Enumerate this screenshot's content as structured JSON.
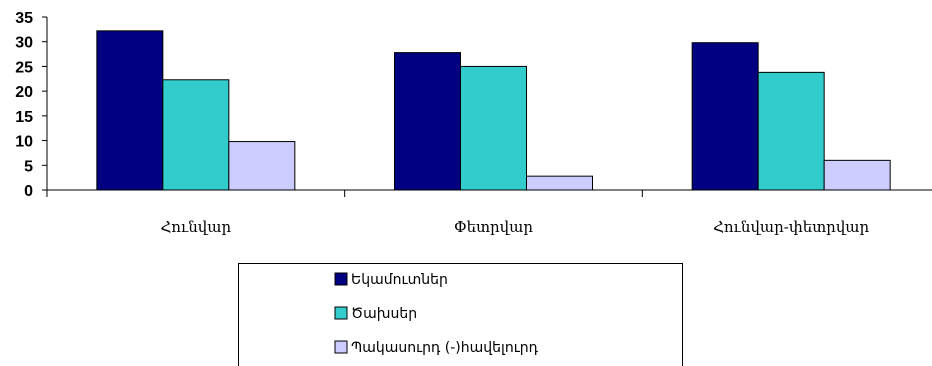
{
  "chart_data": {
    "type": "bar",
    "categories": [
      "Հունվար",
      "Փետրվար",
      "Հունվար-փետրվար"
    ],
    "series": [
      {
        "name": "Եկամուտներ",
        "color": "#000080",
        "values": [
          32.2,
          27.8,
          29.8
        ]
      },
      {
        "name": "Ծախսեր",
        "color": "#33CCCC",
        "values": [
          22.3,
          25.0,
          23.8
        ]
      },
      {
        "name": "Պակասուրդ (-)հավելուրդ",
        "color": "#CCCCFF",
        "values": [
          9.8,
          2.8,
          6.0
        ]
      }
    ],
    "yticks": [
      "0",
      "5",
      "10",
      "15",
      "20",
      "25",
      "30",
      "35"
    ],
    "ylim": [
      0,
      35
    ],
    "grid": false,
    "legend_position": "bottom",
    "title": "",
    "xlabel": "",
    "ylabel": ""
  }
}
